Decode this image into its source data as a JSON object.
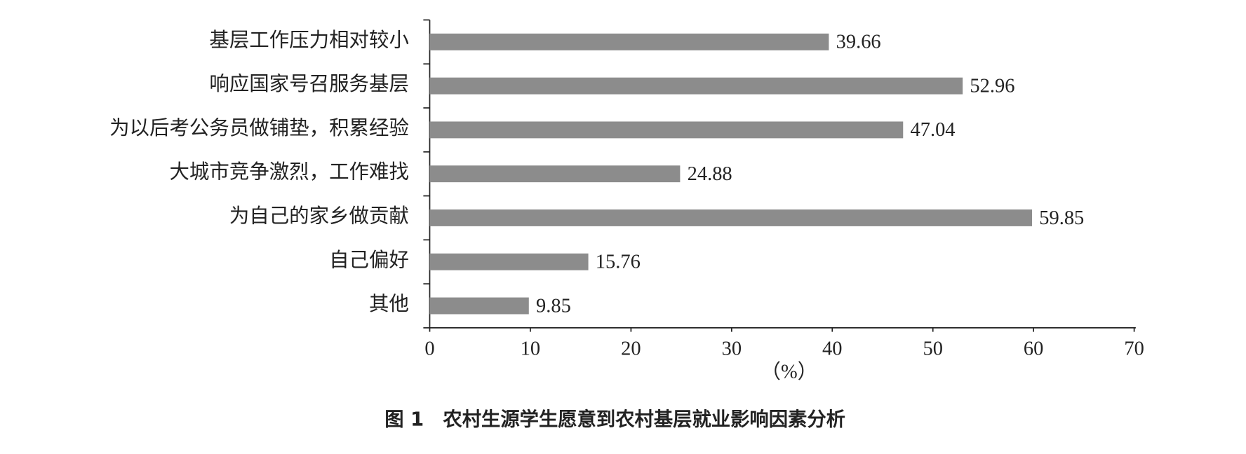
{
  "chart_data": {
    "type": "bar",
    "orientation": "horizontal",
    "title": "图 1　农村生源学生愿意到农村基层就业影响因素分析",
    "x_label": "（%）",
    "categories": [
      "基层工作压力相对较小",
      "响应国家号召服务基层",
      "为以后考公务员做铺垫，积累经验",
      "大城市竞争激烈，工作难找",
      "为自己的家乡做贡献",
      "自己偏好",
      "其他"
    ],
    "values": [
      39.66,
      52.96,
      47.04,
      24.88,
      59.85,
      15.76,
      9.85
    ],
    "color": "#8c8c8c",
    "xlim": [
      0,
      70
    ],
    "xticks": [
      0,
      10,
      20,
      30,
      40,
      50,
      60,
      70
    ],
    "grid": false
  }
}
